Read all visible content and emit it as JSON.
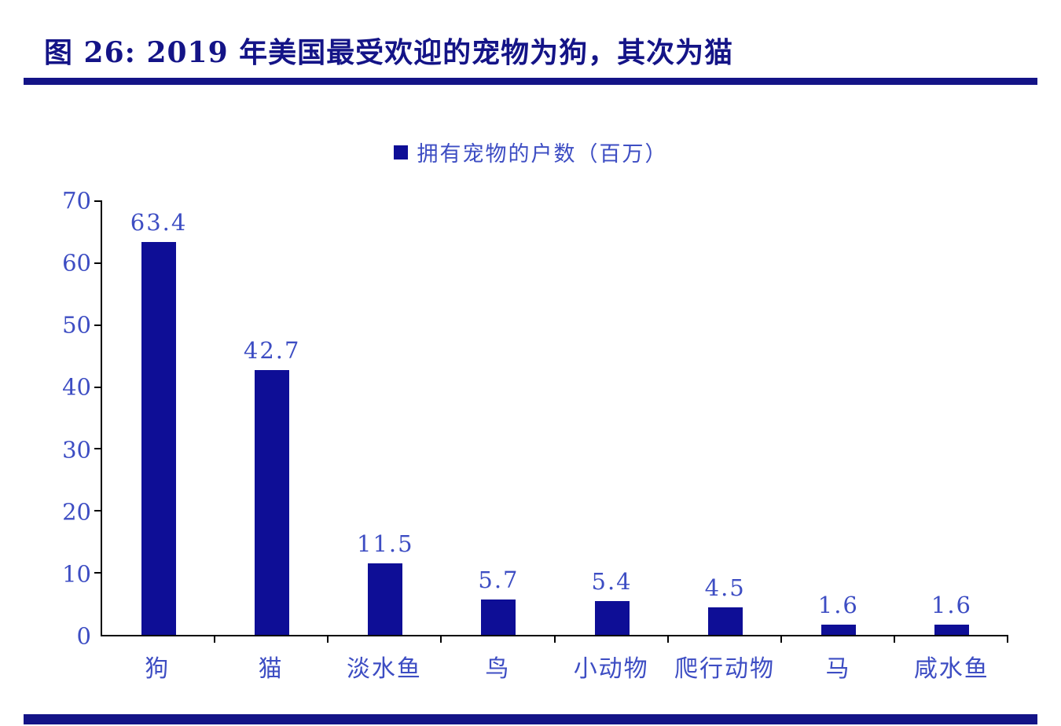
{
  "header": {
    "title": "图 26:  2019 年美国最受欢迎的宠物为狗，其次为猫"
  },
  "legend": {
    "label": "拥有宠物的户数（百万）"
  },
  "chart_data": {
    "type": "bar",
    "title": "图 26:  2019 年美国最受欢迎的宠物为狗，其次为猫",
    "legend": [
      "拥有宠物的户数（百万）"
    ],
    "legend_position": "top-center",
    "categories": [
      "狗",
      "猫",
      "淡水鱼",
      "鸟",
      "小动物",
      "爬行动物",
      "马",
      "咸水鱼"
    ],
    "values": [
      63.4,
      42.7,
      11.5,
      5.7,
      5.4,
      4.5,
      1.6,
      1.6
    ],
    "value_labels": [
      "63.4",
      "42.7",
      "11.5",
      "5.7",
      "5.4",
      "4.5",
      "1.6",
      "1.6"
    ],
    "xlabel": "",
    "ylabel": "",
    "ylim": [
      0,
      70
    ],
    "yticks": [
      0,
      10,
      20,
      30,
      40,
      50,
      60,
      70
    ],
    "grid": false
  },
  "colors": {
    "bar": "#0E0E96",
    "title_and_rules": "#141487",
    "blue_text": "#3D4DC3",
    "axis": "#000000",
    "background": "#FFFFFF"
  }
}
